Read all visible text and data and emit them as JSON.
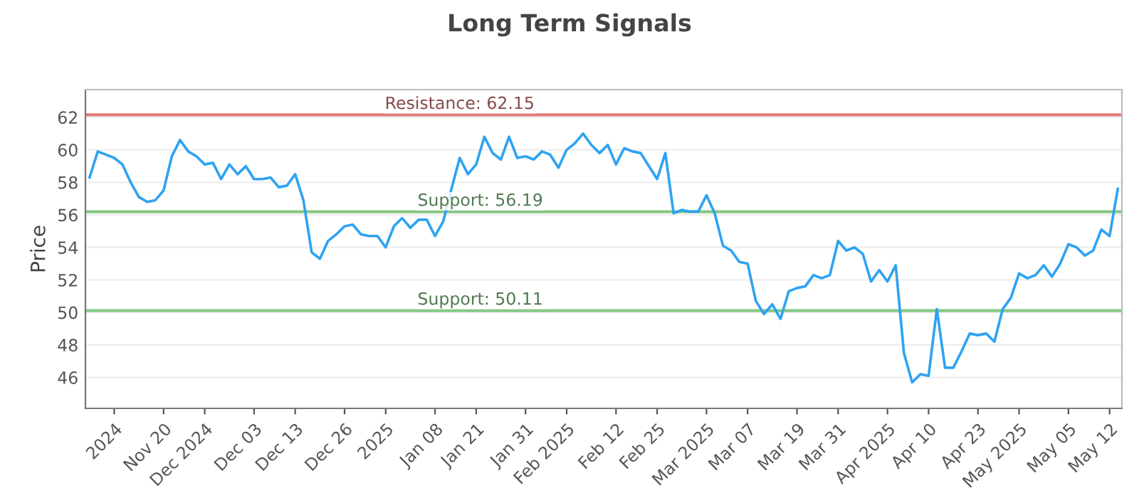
{
  "chart_data": {
    "type": "line",
    "title": "Long Term Signals",
    "ylabel": "Price",
    "categories": [
      null,
      null,
      null,
      "2024",
      null,
      null,
      null,
      null,
      null,
      "Nov 20",
      null,
      null,
      null,
      null,
      "Dec 2024",
      null,
      null,
      null,
      null,
      null,
      "Dec 03",
      null,
      null,
      null,
      null,
      "Dec 13",
      null,
      null,
      null,
      null,
      null,
      "Dec 26",
      null,
      null,
      null,
      null,
      "2025",
      null,
      null,
      null,
      null,
      null,
      "Jan 08",
      null,
      null,
      null,
      null,
      "Jan 21",
      null,
      null,
      null,
      null,
      null,
      "Jan 31",
      null,
      null,
      null,
      null,
      "Feb 2025",
      null,
      null,
      null,
      null,
      null,
      "Feb 12",
      null,
      null,
      null,
      null,
      "Feb 25",
      null,
      null,
      null,
      null,
      null,
      "Mar 2025",
      null,
      null,
      null,
      null,
      "Mar 07",
      null,
      null,
      null,
      null,
      null,
      "Mar 19",
      null,
      null,
      null,
      null,
      "Mar 31",
      null,
      null,
      null,
      null,
      null,
      "Apr 2025",
      null,
      null,
      null,
      null,
      "Apr 10",
      null,
      null,
      null,
      null,
      null,
      "Apr 23",
      null,
      null,
      null,
      null,
      "May 2025",
      null,
      null,
      null,
      null,
      null,
      "May 05",
      null,
      null,
      null,
      null,
      "May 12",
      null
    ],
    "series": [
      {
        "color": "#2ea3f2",
        "values": [
          58.3,
          59.9,
          59.7,
          59.5,
          59.1,
          58.0,
          57.1,
          56.8,
          56.9,
          57.5,
          59.6,
          60.6,
          59.9,
          59.6,
          59.1,
          59.2,
          58.2,
          59.1,
          58.5,
          59.0,
          58.2,
          58.2,
          58.3,
          57.7,
          57.8,
          58.5,
          56.9,
          53.7,
          53.3,
          54.4,
          54.8,
          55.3,
          55.4,
          54.8,
          54.7,
          54.7,
          54.0,
          55.3,
          55.8,
          55.2,
          55.7,
          55.7,
          54.7,
          55.6,
          57.6,
          59.5,
          58.5,
          59.1,
          60.8,
          59.8,
          59.4,
          60.8,
          59.5,
          59.6,
          59.4,
          59.9,
          59.7,
          58.9,
          60.0,
          60.4,
          61.0,
          60.3,
          59.8,
          60.3,
          59.1,
          60.1,
          59.9,
          59.8,
          59.0,
          58.2,
          59.8,
          56.1,
          56.3,
          56.2,
          56.2,
          57.2,
          56.1,
          54.1,
          53.8,
          53.1,
          53.0,
          50.7,
          49.9,
          50.5,
          49.6,
          51.3,
          51.5,
          51.6,
          52.3,
          52.1,
          52.3,
          54.4,
          53.8,
          54.0,
          53.6,
          51.9,
          52.6,
          51.9,
          52.9,
          47.5,
          45.7,
          46.2,
          46.1,
          50.2,
          46.6,
          46.6,
          47.6,
          48.7,
          48.6,
          48.7,
          48.2,
          50.2,
          50.9,
          52.4,
          52.1,
          52.3,
          52.9,
          52.2,
          53.0,
          54.2,
          54.0,
          53.5,
          53.8,
          55.1,
          54.7,
          57.6
        ]
      }
    ],
    "ylim": [
      44.1,
      63.7
    ],
    "yticks": [
      46,
      48,
      50,
      52,
      54,
      56,
      58,
      60,
      62
    ],
    "grid": "y",
    "marker": "none",
    "line_style": "solid",
    "ref_lines": [
      {
        "axis": "y",
        "value": 62.15,
        "label": "Resistance: 62.15",
        "color": "#e07b7b"
      },
      {
        "axis": "y",
        "value": 56.19,
        "label": "Support: 56.19",
        "color": "#86c986"
      },
      {
        "axis": "y",
        "value": 50.11,
        "label": "Support: 50.11",
        "color": "#86c986"
      }
    ]
  }
}
